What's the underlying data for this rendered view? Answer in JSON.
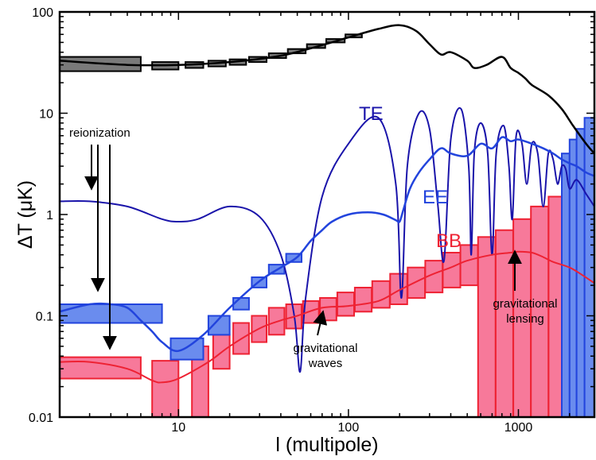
{
  "chart_data": {
    "type": "line",
    "xlabel": "l (multipole)",
    "ylabel": "ΔT (μK)",
    "xscale": "log",
    "yscale": "log",
    "xlim": [
      2,
      2800
    ],
    "ylim": [
      0.01,
      100
    ],
    "x_ticks": [
      {
        "value": 10,
        "label": "10"
      },
      {
        "value": 100,
        "label": "100"
      },
      {
        "value": 1000,
        "label": "1000"
      }
    ],
    "y_ticks": [
      {
        "value": 0.01,
        "label": "0.01"
      },
      {
        "value": 0.1,
        "label": "0.1"
      },
      {
        "value": 1,
        "label": "1"
      },
      {
        "value": 10,
        "label": "10"
      },
      {
        "value": 100,
        "label": "100"
      }
    ],
    "colors": {
      "TT": "#000000",
      "TE": "#1a14aa",
      "EE": "#2244dd",
      "EE_fill": "#6a8cee",
      "BB": "#ee2233",
      "BB_fill": "#f7799a",
      "TT_fill": "#7a7a7a"
    },
    "series": [
      {
        "name": "",
        "key": "TT",
        "x": [
          2,
          5,
          10,
          20,
          40,
          70,
          100,
          150,
          200,
          250,
          300,
          350,
          400,
          500,
          550,
          650,
          800,
          900,
          1000,
          1100,
          1200,
          1500,
          1800,
          2100,
          2500,
          2800
        ],
        "y": [
          33,
          30,
          30,
          32,
          37,
          47,
          56,
          68,
          74,
          65,
          48,
          38,
          40,
          33,
          28,
          30,
          36,
          28,
          25,
          22,
          19,
          15,
          11,
          7.5,
          5,
          4
        ]
      },
      {
        "name": "TE",
        "key": "TE",
        "x": [
          2,
          3,
          5,
          8,
          10,
          13,
          20,
          30,
          40,
          48,
          52,
          56,
          70,
          100,
          150,
          190,
          205,
          222,
          260,
          300,
          335,
          365,
          400,
          460,
          510,
          528,
          550,
          600,
          660,
          700,
          740,
          820,
          880,
          920,
          970,
          1050,
          1120,
          1200,
          1300,
          1400,
          1500,
          1600,
          1700,
          1800,
          1900,
          2000,
          2200,
          2500,
          2800
        ],
        "y": [
          1.35,
          1.35,
          1.2,
          0.9,
          0.85,
          0.9,
          1.2,
          0.95,
          0.4,
          0.1,
          0.028,
          0.15,
          1.5,
          5,
          9,
          2,
          0.15,
          3,
          10,
          7,
          1.3,
          0.35,
          5.5,
          11,
          3,
          0.4,
          4,
          8,
          4,
          0.4,
          4,
          7.5,
          3,
          0.9,
          6,
          5,
          2,
          5,
          4,
          1.2,
          4,
          3.5,
          2,
          3,
          2.8,
          1.8,
          2.2,
          1.6,
          1.2
        ]
      },
      {
        "name": "EE",
        "key": "EE",
        "x": [
          2,
          3,
          4,
          5,
          6,
          7,
          8,
          10,
          14,
          20,
          30,
          40,
          50,
          60,
          70,
          80,
          100,
          130,
          160,
          190,
          200,
          210,
          230,
          260,
          300,
          350,
          400,
          500,
          600,
          700,
          800,
          900,
          1000,
          1200,
          1400,
          1600,
          1800,
          2000,
          2200,
          2500,
          2800
        ],
        "y": [
          0.11,
          0.13,
          0.13,
          0.12,
          0.09,
          0.07,
          0.055,
          0.045,
          0.065,
          0.12,
          0.22,
          0.3,
          0.38,
          0.55,
          0.7,
          0.85,
          1.0,
          1.05,
          1.0,
          0.88,
          0.85,
          1.1,
          1.8,
          2.6,
          3.5,
          4.5,
          4.0,
          3.8,
          5.0,
          4.5,
          5.8,
          5.3,
          5.5,
          5.0,
          4.5,
          4.0,
          3.5,
          3.2,
          3.0,
          2.6,
          2.4
        ]
      },
      {
        "name": "",
        "key": "BB_lens",
        "x": [
          2,
          3,
          5,
          7,
          8,
          10,
          15,
          20,
          30,
          40,
          50,
          70,
          100,
          150,
          200,
          300,
          400,
          500,
          700,
          900,
          1000,
          1200,
          1400,
          1600,
          2000,
          2400,
          2800
        ],
        "y": [
          0.035,
          0.035,
          0.03,
          0.023,
          0.022,
          0.024,
          0.035,
          0.05,
          0.075,
          0.09,
          0.1,
          0.12,
          0.125,
          0.14,
          0.18,
          0.25,
          0.3,
          0.35,
          0.4,
          0.42,
          0.43,
          0.42,
          0.38,
          0.34,
          0.3,
          0.25,
          0.21
        ]
      }
    ],
    "band_powers": {
      "TT": [
        {
          "l_min": 2,
          "l_max": 6,
          "low": 26,
          "high": 36
        },
        {
          "l_min": 7,
          "l_max": 10,
          "low": 27,
          "high": 32
        },
        {
          "l_min": 11,
          "l_max": 14,
          "low": 28,
          "high": 32
        },
        {
          "l_min": 15,
          "l_max": 19,
          "low": 29,
          "high": 33
        },
        {
          "l_min": 20,
          "l_max": 25,
          "low": 30,
          "high": 34
        },
        {
          "l_min": 26,
          "l_max": 33,
          "low": 32,
          "high": 36
        },
        {
          "l_min": 34,
          "l_max": 43,
          "low": 35,
          "high": 39
        },
        {
          "l_min": 44,
          "l_max": 56,
          "low": 39,
          "high": 43
        },
        {
          "l_min": 57,
          "l_max": 73,
          "low": 44,
          "high": 48
        },
        {
          "l_min": 74,
          "l_max": 95,
          "low": 50,
          "high": 54
        },
        {
          "l_min": 96,
          "l_max": 120,
          "low": 56,
          "high": 60
        }
      ],
      "EE": [
        {
          "l_min": 2,
          "l_max": 8,
          "low": 0.085,
          "high": 0.13
        },
        {
          "l_min": 9,
          "l_max": 14,
          "low": 0.037,
          "high": 0.06
        },
        {
          "l_min": 15,
          "l_max": 20,
          "low": 0.065,
          "high": 0.1
        },
        {
          "l_min": 21,
          "l_max": 26,
          "low": 0.115,
          "high": 0.15
        },
        {
          "l_min": 27,
          "l_max": 33,
          "low": 0.19,
          "high": 0.24
        },
        {
          "l_min": 34,
          "l_max": 42,
          "low": 0.26,
          "high": 0.32
        },
        {
          "l_min": 43,
          "l_max": 53,
          "low": 0.34,
          "high": 0.41
        },
        {
          "l_min": 1800,
          "l_max": 2000,
          "low": 0.01,
          "high": 4
        },
        {
          "l_min": 2000,
          "l_max": 2200,
          "low": 0.01,
          "high": 5.5
        },
        {
          "l_min": 2200,
          "l_max": 2450,
          "low": 0.01,
          "high": 7
        },
        {
          "l_min": 2450,
          "l_max": 2800,
          "low": 0.01,
          "high": 9
        }
      ],
      "BB": [
        {
          "l_min": 2,
          "l_max": 6,
          "low": 0.024,
          "high": 0.039
        },
        {
          "l_min": 7,
          "l_max": 10,
          "low": 0.01,
          "high": 0.036
        },
        {
          "l_min": 12,
          "l_max": 15,
          "low": 0.01,
          "high": 0.05
        },
        {
          "l_min": 16,
          "l_max": 20,
          "low": 0.03,
          "high": 0.065
        },
        {
          "l_min": 21,
          "l_max": 26,
          "low": 0.042,
          "high": 0.085
        },
        {
          "l_min": 27,
          "l_max": 33,
          "low": 0.055,
          "high": 0.1
        },
        {
          "l_min": 34,
          "l_max": 42,
          "low": 0.065,
          "high": 0.12
        },
        {
          "l_min": 43,
          "l_max": 53,
          "low": 0.075,
          "high": 0.13
        },
        {
          "l_min": 54,
          "l_max": 67,
          "low": 0.085,
          "high": 0.14
        },
        {
          "l_min": 68,
          "l_max": 85,
          "low": 0.09,
          "high": 0.15
        },
        {
          "l_min": 86,
          "l_max": 108,
          "low": 0.1,
          "high": 0.17
        },
        {
          "l_min": 109,
          "l_max": 137,
          "low": 0.11,
          "high": 0.19
        },
        {
          "l_min": 138,
          "l_max": 175,
          "low": 0.12,
          "high": 0.22
        },
        {
          "l_min": 176,
          "l_max": 222,
          "low": 0.13,
          "high": 0.26
        },
        {
          "l_min": 223,
          "l_max": 282,
          "low": 0.15,
          "high": 0.3
        },
        {
          "l_min": 283,
          "l_max": 358,
          "low": 0.17,
          "high": 0.35
        },
        {
          "l_min": 359,
          "l_max": 455,
          "low": 0.19,
          "high": 0.42
        },
        {
          "l_min": 456,
          "l_max": 578,
          "low": 0.2,
          "high": 0.5
        },
        {
          "l_min": 579,
          "l_max": 734,
          "low": 0.01,
          "high": 0.6
        },
        {
          "l_min": 735,
          "l_max": 932,
          "low": 0.01,
          "high": 0.7
        },
        {
          "l_min": 933,
          "l_max": 1184,
          "low": 0.01,
          "high": 0.9
        },
        {
          "l_min": 1185,
          "l_max": 1504,
          "low": 0.01,
          "high": 1.2
        },
        {
          "l_min": 1505,
          "l_max": 1800,
          "low": 0.01,
          "high": 1.5
        }
      ]
    },
    "labels": {
      "TE": "TE",
      "EE": "EE",
      "BB": "BB"
    },
    "annotations": {
      "reionization": "reionization",
      "grav_waves": [
        "gravitational",
        "waves"
      ],
      "grav_lensing": [
        "gravitational",
        "lensing"
      ]
    }
  }
}
